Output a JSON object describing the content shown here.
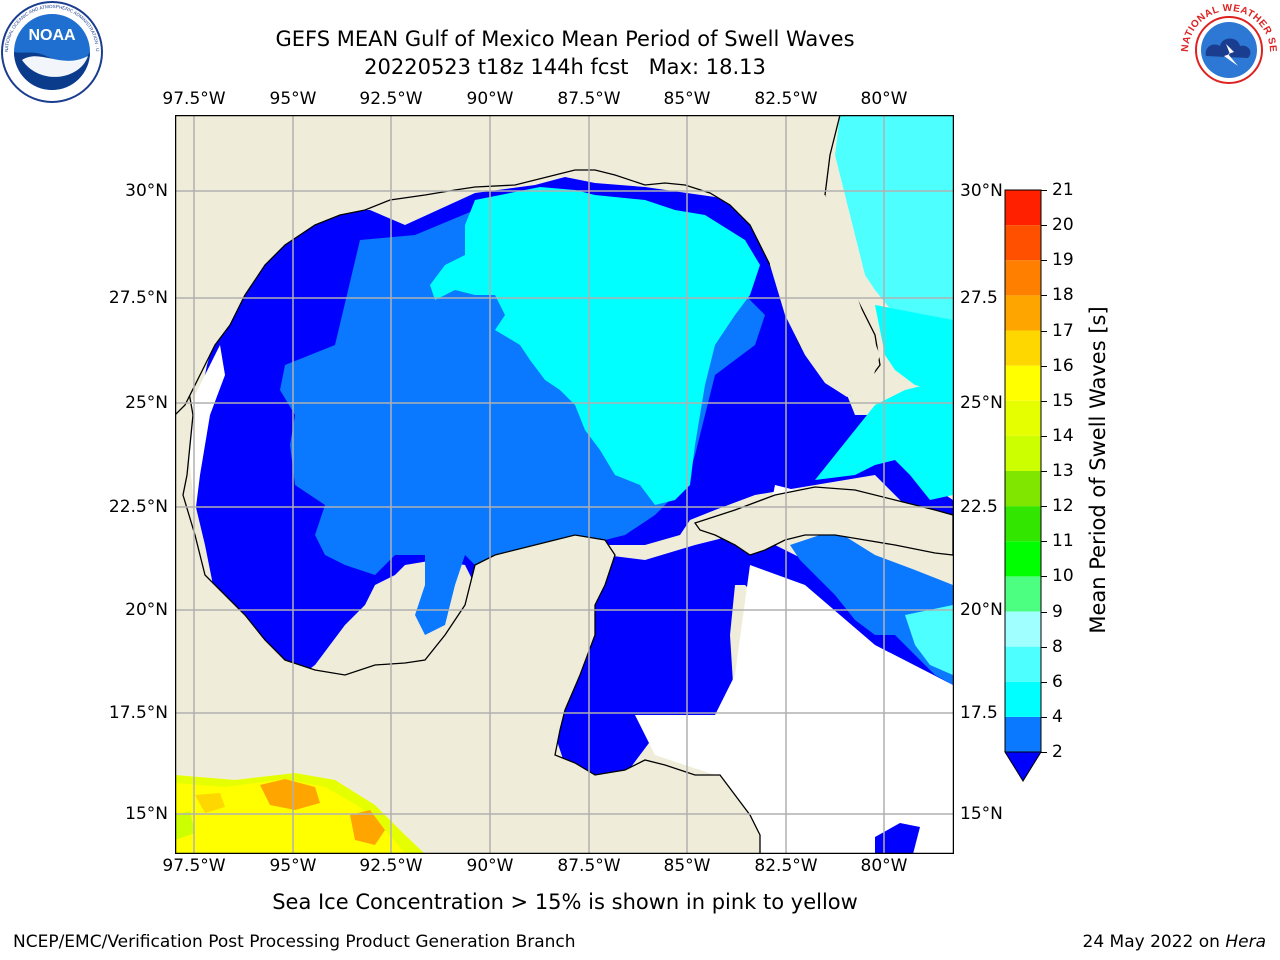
{
  "title": "GEFS MEAN Gulf of Mexico Mean Period of Swell Waves",
  "subtitle": "20220523 t18z 144h fcst   Max: 18.13",
  "logos": {
    "noaa_text": "NOAA",
    "noaa_ring_text": "NATIONAL OCEANIC AND ATMOSPHERIC ADMINISTRATION · U.S. DEPARTMENT OF COMMERCE",
    "nws_ring_text": "NATIONAL WEATHER SERVICE"
  },
  "map": {
    "lon_labels": [
      "97.5°W",
      "95°W",
      "92.5°W",
      "90°W",
      "87.5°W",
      "85°W",
      "82.5°W",
      "80°W"
    ],
    "lat_labels_left": [
      "30°N",
      "27.5°N",
      "25°N",
      "22.5°N",
      "20°N",
      "17.5°N",
      "15°N"
    ],
    "lat_labels_right": [
      "30°N",
      "27.5",
      "25°N",
      "22.5",
      "20°N",
      "17.5",
      "15°N"
    ],
    "lon_range": [
      -98,
      -79
    ],
    "lat_range": [
      14,
      31.8
    ],
    "colors": {
      "land": "#efedda",
      "grid": "#b0b0b0",
      "dark_blue": "#0000ff",
      "mid_blue": "#0a78ff",
      "cyan": "#00ffff",
      "light_cyan": "#4dffff",
      "ice_yellow": "#ffff00",
      "ice_orange": "#ffa500",
      "ice_green": "#ccff00"
    }
  },
  "colorbar": {
    "label": "Mean Period of Swell Waves [s]",
    "ticks": [
      "2",
      "4",
      "6",
      "8",
      "9",
      "10",
      "11",
      "12",
      "13",
      "14",
      "15",
      "16",
      "17",
      "18",
      "19",
      "20",
      "21"
    ],
    "bins": [
      {
        "from": 2,
        "to": 4,
        "color": "#0a78ff"
      },
      {
        "from": 4,
        "to": 6,
        "color": "#00ffff"
      },
      {
        "from": 6,
        "to": 8,
        "color": "#4dffff"
      },
      {
        "from": 8,
        "to": 9,
        "color": "#a0ffff"
      },
      {
        "from": 9,
        "to": 10,
        "color": "#4dff80"
      },
      {
        "from": 10,
        "to": 11,
        "color": "#00ff00"
      },
      {
        "from": 11,
        "to": 12,
        "color": "#33e600"
      },
      {
        "from": 12,
        "to": 13,
        "color": "#80e600"
      },
      {
        "from": 13,
        "to": 14,
        "color": "#ccff00"
      },
      {
        "from": 14,
        "to": 15,
        "color": "#e6ff00"
      },
      {
        "from": 15,
        "to": 16,
        "color": "#ffff00"
      },
      {
        "from": 16,
        "to": 17,
        "color": "#ffd700"
      },
      {
        "from": 17,
        "to": 18,
        "color": "#ffa500"
      },
      {
        "from": 18,
        "to": 19,
        "color": "#ff8000"
      },
      {
        "from": 19,
        "to": 20,
        "color": "#ff5000"
      },
      {
        "from": 20,
        "to": 21,
        "color": "#ff2000"
      }
    ],
    "extend_color": "#0000ff"
  },
  "ice_note": "Sea Ice Concentration > 15% is shown in pink to yellow",
  "footer": {
    "left": "NCEP/EMC/Verification Post Processing Product Generation Branch",
    "right_date": "24 May 2022 on ",
    "right_host": "Hera"
  }
}
